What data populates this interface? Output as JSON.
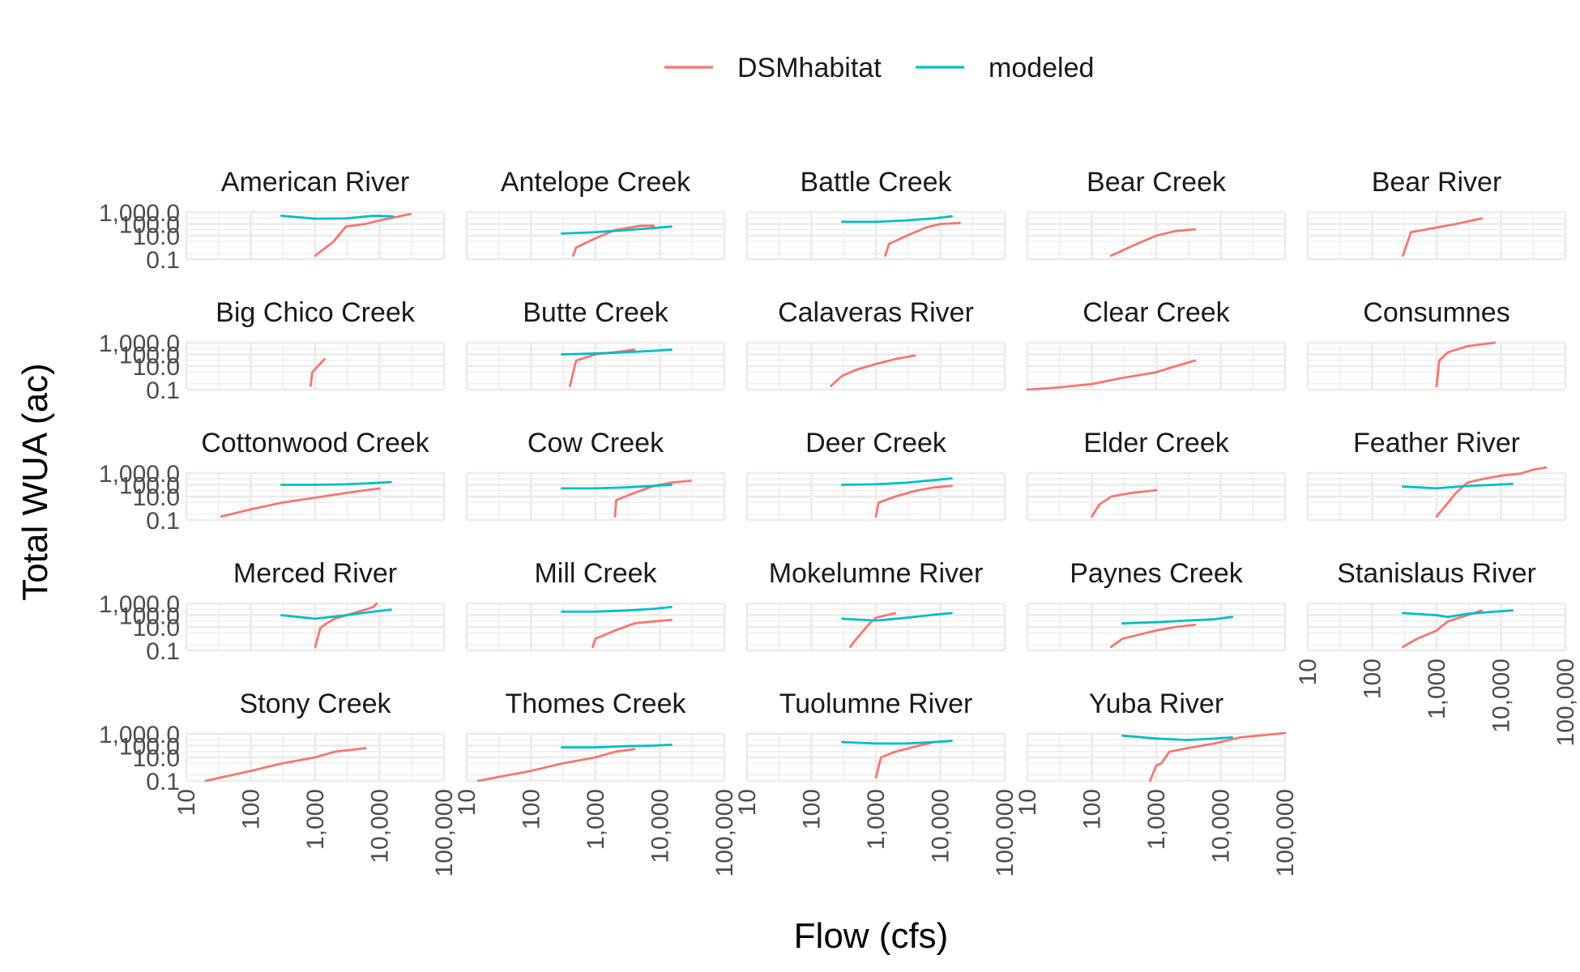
{
  "chart_data": {
    "type": "line",
    "title": "",
    "xlabel": "Flow (cfs)",
    "ylabel": "Total WUA (ac)",
    "x_scale": "log10",
    "y_scale": "log10",
    "xlim": [
      10,
      100000
    ],
    "ylim": [
      0.1,
      1000
    ],
    "x_ticks": [
      10,
      100,
      1000,
      10000,
      100000
    ],
    "x_tick_labels": [
      "10",
      "100",
      "1,000",
      "10,000",
      "100,000"
    ],
    "y_ticks": [
      0.1,
      10,
      100,
      1000
    ],
    "y_tick_labels": [
      "0.1",
      "10.0",
      "100.0",
      "1,000.0"
    ],
    "grid": true,
    "legend": {
      "position": "top",
      "entries": [
        "DSMhabitat",
        "modeled"
      ]
    },
    "colors": {
      "DSMhabitat": "#F8766D",
      "modeled": "#00BFC4"
    },
    "facets": [
      {
        "name": "American River",
        "DSMhabitat": [
          [
            1000,
            0.2
          ],
          [
            1900,
            3
          ],
          [
            3000,
            60
          ],
          [
            6000,
            100
          ],
          [
            12000,
            250
          ],
          [
            30000,
            700
          ]
        ],
        "modeled": [
          [
            300,
            500
          ],
          [
            1000,
            280
          ],
          [
            3000,
            300
          ],
          [
            8000,
            500
          ],
          [
            16000,
            450
          ]
        ]
      },
      {
        "name": "Antelope Creek",
        "DSMhabitat": [
          [
            450,
            0.2
          ],
          [
            500,
            1
          ],
          [
            1000,
            6
          ],
          [
            2000,
            30
          ],
          [
            5000,
            70
          ],
          [
            8000,
            70
          ]
        ],
        "modeled": [
          [
            300,
            15
          ],
          [
            1000,
            20
          ],
          [
            3000,
            30
          ],
          [
            8000,
            45
          ],
          [
            15000,
            60
          ]
        ]
      },
      {
        "name": "Battle Creek",
        "DSMhabitat": [
          [
            1400,
            0.2
          ],
          [
            1600,
            2
          ],
          [
            3000,
            10
          ],
          [
            6000,
            50
          ],
          [
            10000,
            100
          ],
          [
            20000,
            120
          ]
        ],
        "modeled": [
          [
            300,
            150
          ],
          [
            1000,
            150
          ],
          [
            3000,
            200
          ],
          [
            8000,
            300
          ],
          [
            15000,
            450
          ]
        ]
      },
      {
        "name": "Bear Creek",
        "DSMhabitat": [
          [
            200,
            0.2
          ],
          [
            500,
            2
          ],
          [
            1000,
            10
          ],
          [
            2000,
            25
          ],
          [
            4000,
            35
          ]
        ],
        "modeled": []
      },
      {
        "name": "Bear River",
        "DSMhabitat": [
          [
            300,
            0.2
          ],
          [
            400,
            20
          ],
          [
            1000,
            50
          ],
          [
            2000,
            100
          ],
          [
            5000,
            300
          ]
        ],
        "modeled": []
      },
      {
        "name": "Big Chico Creek",
        "DSMhabitat": [
          [
            850,
            0.2
          ],
          [
            900,
            3
          ],
          [
            1100,
            10
          ],
          [
            1400,
            40
          ]
        ],
        "modeled": []
      },
      {
        "name": "Butte Creek",
        "DSMhabitat": [
          [
            400,
            0.2
          ],
          [
            500,
            30
          ],
          [
            1000,
            100
          ],
          [
            2000,
            150
          ],
          [
            4000,
            250
          ]
        ],
        "modeled": [
          [
            300,
            100
          ],
          [
            1000,
            120
          ],
          [
            3000,
            150
          ],
          [
            8000,
            200
          ],
          [
            15000,
            250
          ]
        ]
      },
      {
        "name": "Calaveras River",
        "DSMhabitat": [
          [
            200,
            0.2
          ],
          [
            300,
            1.5
          ],
          [
            500,
            5
          ],
          [
            1000,
            15
          ],
          [
            2000,
            40
          ],
          [
            4000,
            80
          ]
        ],
        "modeled": []
      },
      {
        "name": "Clear Creek",
        "DSMhabitat": [
          [
            10,
            0.1
          ],
          [
            30,
            0.15
          ],
          [
            100,
            0.3
          ],
          [
            300,
            1
          ],
          [
            1000,
            3
          ],
          [
            2000,
            10
          ],
          [
            4000,
            30
          ]
        ],
        "modeled": []
      },
      {
        "name": "Consumnes",
        "DSMhabitat": [
          [
            1000,
            0.2
          ],
          [
            1100,
            30
          ],
          [
            1500,
            150
          ],
          [
            3000,
            500
          ],
          [
            8000,
            1000
          ]
        ],
        "modeled": []
      },
      {
        "name": "Cottonwood Creek",
        "DSMhabitat": [
          [
            35,
            0.2
          ],
          [
            100,
            0.8
          ],
          [
            300,
            3
          ],
          [
            1000,
            8
          ],
          [
            3000,
            20
          ],
          [
            10000,
            50
          ]
        ],
        "modeled": [
          [
            300,
            100
          ],
          [
            1000,
            100
          ],
          [
            3000,
            110
          ],
          [
            8000,
            140
          ],
          [
            15000,
            170
          ]
        ]
      },
      {
        "name": "Cow Creek",
        "DSMhabitat": [
          [
            2000,
            0.2
          ],
          [
            2100,
            5
          ],
          [
            4000,
            20
          ],
          [
            8000,
            80
          ],
          [
            15000,
            150
          ],
          [
            30000,
            220
          ]
        ],
        "modeled": [
          [
            300,
            50
          ],
          [
            1000,
            50
          ],
          [
            3000,
            60
          ],
          [
            8000,
            80
          ],
          [
            15000,
            100
          ]
        ]
      },
      {
        "name": "Deer Creek",
        "DSMhabitat": [
          [
            1000,
            0.2
          ],
          [
            1100,
            3
          ],
          [
            2000,
            10
          ],
          [
            4000,
            30
          ],
          [
            8000,
            60
          ],
          [
            15000,
            80
          ]
        ],
        "modeled": [
          [
            300,
            100
          ],
          [
            1000,
            110
          ],
          [
            3000,
            150
          ],
          [
            8000,
            250
          ],
          [
            15000,
            350
          ]
        ]
      },
      {
        "name": "Elder Creek",
        "DSMhabitat": [
          [
            100,
            0.2
          ],
          [
            130,
            2
          ],
          [
            200,
            10
          ],
          [
            400,
            20
          ],
          [
            800,
            30
          ],
          [
            1000,
            35
          ]
        ],
        "modeled": []
      },
      {
        "name": "Feather River",
        "DSMhabitat": [
          [
            1000,
            0.2
          ],
          [
            2000,
            20
          ],
          [
            3000,
            150
          ],
          [
            5000,
            300
          ],
          [
            10000,
            600
          ],
          [
            20000,
            900
          ],
          [
            30000,
            1800
          ],
          [
            50000,
            3000
          ]
        ],
        "modeled": [
          [
            300,
            70
          ],
          [
            1000,
            50
          ],
          [
            3000,
            80
          ],
          [
            8000,
            100
          ],
          [
            15000,
            120
          ]
        ]
      },
      {
        "name": "Merced River",
        "DSMhabitat": [
          [
            1000,
            0.2
          ],
          [
            1200,
            8
          ],
          [
            1500,
            20
          ],
          [
            2000,
            50
          ],
          [
            4000,
            150
          ],
          [
            8000,
            500
          ],
          [
            9000,
            1000
          ]
        ],
        "modeled": [
          [
            300,
            100
          ],
          [
            1000,
            50
          ],
          [
            3000,
            100
          ],
          [
            8000,
            200
          ],
          [
            15000,
            300
          ]
        ]
      },
      {
        "name": "Mill Creek",
        "DSMhabitat": [
          [
            900,
            0.2
          ],
          [
            1000,
            1
          ],
          [
            2000,
            5
          ],
          [
            4000,
            20
          ],
          [
            8000,
            30
          ],
          [
            15000,
            40
          ]
        ],
        "modeled": [
          [
            300,
            200
          ],
          [
            1000,
            200
          ],
          [
            3000,
            250
          ],
          [
            8000,
            350
          ],
          [
            15000,
            500
          ]
        ]
      },
      {
        "name": "Mokelumne River",
        "DSMhabitat": [
          [
            400,
            0.2
          ],
          [
            500,
            1
          ],
          [
            800,
            20
          ],
          [
            1000,
            60
          ],
          [
            2000,
            150
          ]
        ],
        "modeled": [
          [
            300,
            50
          ],
          [
            1000,
            35
          ],
          [
            3000,
            60
          ],
          [
            8000,
            110
          ],
          [
            15000,
            150
          ]
        ]
      },
      {
        "name": "Paynes Creek",
        "DSMhabitat": [
          [
            200,
            0.2
          ],
          [
            300,
            1
          ],
          [
            1000,
            5
          ],
          [
            2000,
            10
          ],
          [
            4000,
            15
          ]
        ],
        "modeled": [
          [
            300,
            20
          ],
          [
            1000,
            25
          ],
          [
            3000,
            35
          ],
          [
            8000,
            45
          ],
          [
            15000,
            70
          ]
        ]
      },
      {
        "name": "Stanislaus River",
        "DSMhabitat": [
          [
            300,
            0.2
          ],
          [
            500,
            1
          ],
          [
            1000,
            5
          ],
          [
            1500,
            30
          ],
          [
            3000,
            100
          ],
          [
            5000,
            250
          ]
        ],
        "modeled": [
          [
            300,
            150
          ],
          [
            1000,
            100
          ],
          [
            1500,
            70
          ],
          [
            3000,
            130
          ],
          [
            8000,
            200
          ],
          [
            15000,
            250
          ]
        ]
      },
      {
        "name": "Stony Creek",
        "DSMhabitat": [
          [
            20,
            0.1
          ],
          [
            100,
            0.7
          ],
          [
            300,
            3
          ],
          [
            1000,
            10
          ],
          [
            2000,
            30
          ],
          [
            6000,
            60
          ]
        ],
        "modeled": []
      },
      {
        "name": "Thomes Creek",
        "DSMhabitat": [
          [
            15,
            0.1
          ],
          [
            100,
            0.7
          ],
          [
            300,
            3
          ],
          [
            1000,
            10
          ],
          [
            2000,
            30
          ],
          [
            4000,
            50
          ]
        ],
        "modeled": [
          [
            300,
            70
          ],
          [
            1000,
            70
          ],
          [
            3000,
            90
          ],
          [
            8000,
            100
          ],
          [
            15000,
            120
          ]
        ]
      },
      {
        "name": "Tuolumne River",
        "DSMhabitat": [
          [
            1000,
            0.2
          ],
          [
            1200,
            10
          ],
          [
            2000,
            30
          ],
          [
            4000,
            80
          ],
          [
            8000,
            200
          ]
        ],
        "modeled": [
          [
            300,
            200
          ],
          [
            1000,
            150
          ],
          [
            3000,
            150
          ],
          [
            8000,
            200
          ],
          [
            15000,
            250
          ]
        ]
      },
      {
        "name": "Yuba River",
        "DSMhabitat": [
          [
            800,
            0.1
          ],
          [
            1000,
            2
          ],
          [
            1200,
            3
          ],
          [
            1600,
            30
          ],
          [
            3000,
            60
          ],
          [
            8000,
            150
          ],
          [
            20000,
            500
          ],
          [
            50000,
            800
          ],
          [
            100000,
            1200
          ]
        ],
        "modeled": [
          [
            300,
            700
          ],
          [
            1000,
            400
          ],
          [
            3000,
            300
          ],
          [
            8000,
            400
          ],
          [
            15000,
            500
          ]
        ]
      }
    ]
  }
}
